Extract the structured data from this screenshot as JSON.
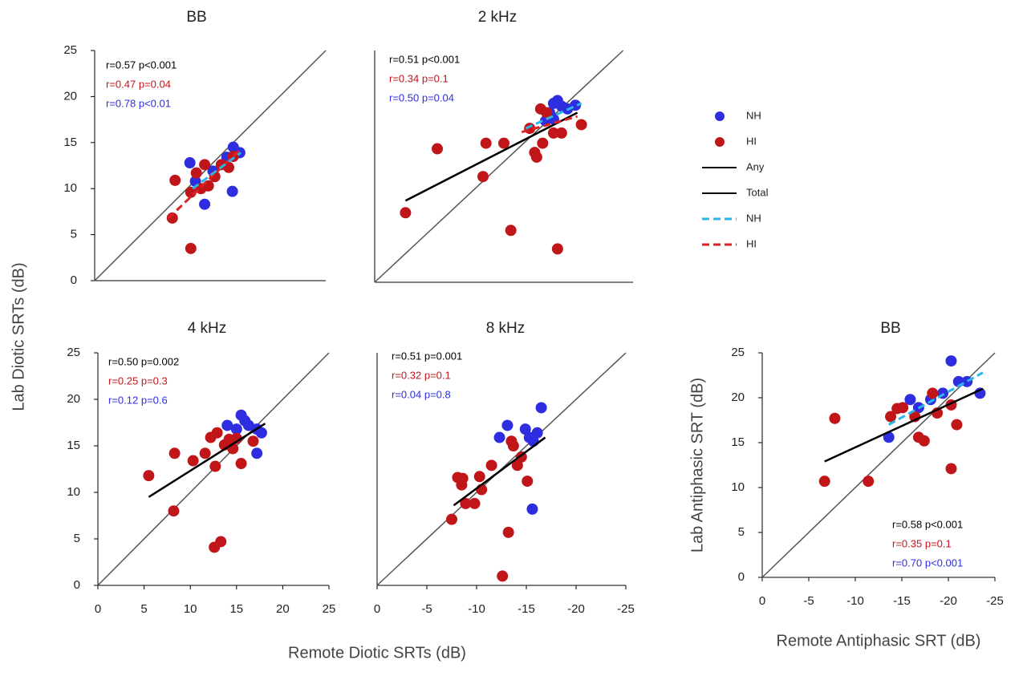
{
  "figure": {
    "ylabel": "Lab Diotic SRTs (dB)",
    "xlabel": "Remote Diotic SRTs (dB)",
    "legend": [
      {
        "name": "NH",
        "color": "#2e2ee0",
        "kind": "marker"
      },
      {
        "name": "HI",
        "color": "#c0161a",
        "kind": "marker"
      },
      {
        "name": "Any",
        "color": "#000000",
        "kind": "line"
      },
      {
        "name": "Total",
        "color": "#000000",
        "kind": "line"
      },
      {
        "name": "NH",
        "color": "#29b6e8",
        "kind": "dashed"
      },
      {
        "name": "HI",
        "color": "#e02020",
        "kind": "dashed"
      }
    ]
  },
  "chart_data": [
    {
      "type": "scatter",
      "title": "BB",
      "xlim": [
        0,
        25
      ],
      "ylim": [
        0,
        25
      ],
      "yticks": [
        0,
        5,
        10,
        15,
        20,
        25
      ],
      "identity": true,
      "annotations": [
        {
          "text": "r=0.57 p<0.001",
          "color": "#000000"
        },
        {
          "text": "r=0.47 p=0.04",
          "color": "#c0161a"
        },
        {
          "text": "r=0.78 p<0.01",
          "color": "#2e2ee0"
        }
      ],
      "series": [
        {
          "color": "#2e2ee0",
          "x": [
            15.0,
            15.7,
            14.3,
            12.8,
            10.3,
            11.9,
            14.9,
            10.9
          ],
          "values": [
            14.5,
            13.9,
            13.4,
            11.9,
            12.8,
            8.3,
            9.7,
            10.8
          ]
        },
        {
          "color": "#c0161a",
          "x": [
            8.7,
            8.4,
            10.4,
            10.4,
            11.5,
            11.9,
            13.0,
            13.7,
            15.0,
            14.5,
            12.3,
            11.0
          ],
          "values": [
            10.9,
            6.8,
            3.5,
            9.6,
            10.0,
            12.6,
            11.3,
            12.6,
            13.5,
            12.3,
            10.3,
            11.7
          ]
        }
      ],
      "fits": [
        {
          "color": "#e02020",
          "dashed": true,
          "x": [
            8.0,
            15.8
          ],
          "values": [
            6.8,
            14.3
          ]
        },
        {
          "color": "#29b6e8",
          "dashed": true,
          "x": [
            10.6,
            15.8
          ],
          "values": [
            10.0,
            13.9
          ]
        }
      ]
    },
    {
      "type": "scatter",
      "title": "2 kHz",
      "xlim": [
        0,
        -26
      ],
      "ylim": [
        0,
        25
      ],
      "identity": true,
      "annotations": [
        {
          "text": "r=0.51 p<0.001",
          "color": "#000000"
        },
        {
          "text": "r=0.34 p=0.1",
          "color": "#c0161a"
        },
        {
          "text": "r=0.50 p=0.04",
          "color": "#2e2ee0"
        }
      ],
      "series": [
        {
          "color": "#2e2ee0",
          "x": [
            -18.0,
            -18.4,
            -18.8,
            -17.6,
            -20.2,
            -18.0,
            -19.4,
            -17.2
          ],
          "values": [
            19.3,
            19.6,
            19.0,
            18.3,
            19.1,
            17.6,
            18.7,
            17.4
          ]
        },
        {
          "color": "#c0161a",
          "x": [
            -3.1,
            -6.3,
            -10.9,
            -11.2,
            -13.0,
            -13.7,
            -15.6,
            -16.1,
            -16.3,
            -16.7,
            -17.3,
            -18.0,
            -18.4,
            -18.8,
            -20.8,
            -16.9
          ],
          "values": [
            7.5,
            14.4,
            11.4,
            15.0,
            15.0,
            5.6,
            16.6,
            14.0,
            13.5,
            18.7,
            18.3,
            16.1,
            3.6,
            16.1,
            17.0,
            15.0
          ]
        }
      ],
      "fits": [
        {
          "color": "#000000",
          "dashed": false,
          "x": [
            -3.1,
            -20.4
          ],
          "values": [
            8.8,
            18.3
          ]
        },
        {
          "color": "#e02020",
          "dashed": true,
          "x": [
            -14.8,
            -20.4
          ],
          "values": [
            16.2,
            17.9
          ]
        },
        {
          "color": "#29b6e8",
          "dashed": true,
          "x": [
            -15.2,
            -20.8
          ],
          "values": [
            16.6,
            19.3
          ]
        }
      ]
    },
    {
      "type": "scatter",
      "title": "4 kHz",
      "xlim": [
        0,
        25
      ],
      "ylim": [
        0,
        25
      ],
      "xticks": [
        0,
        5,
        10,
        15,
        20,
        25
      ],
      "yticks": [
        0,
        5,
        10,
        15,
        20,
        25
      ],
      "identity": true,
      "annotations": [
        {
          "text": "r=0.50 p=0.002",
          "color": "#000000"
        },
        {
          "text": "r=0.25 p=0.3",
          "color": "#c0161a"
        },
        {
          "text": "r=0.12 p=0.6",
          "color": "#2e2ee0"
        }
      ],
      "series": [
        {
          "color": "#2e2ee0",
          "x": [
            15.5,
            15.9,
            16.3,
            17.2,
            17.2,
            17.7,
            14.0,
            15.0
          ],
          "values": [
            18.3,
            17.7,
            17.2,
            16.8,
            14.2,
            16.4,
            17.2,
            16.8
          ]
        },
        {
          "color": "#c0161a",
          "x": [
            5.5,
            8.3,
            8.2,
            10.3,
            11.6,
            12.2,
            12.7,
            12.6,
            13.3,
            13.7,
            14.2,
            15.0,
            15.5,
            14.6,
            16.8,
            12.9
          ],
          "values": [
            11.8,
            14.2,
            8.0,
            13.4,
            14.2,
            15.9,
            12.8,
            4.1,
            4.7,
            15.1,
            15.7,
            15.8,
            13.1,
            14.7,
            15.5,
            16.4
          ]
        }
      ],
      "fits": [
        {
          "color": "#000000",
          "dashed": false,
          "x": [
            5.5,
            18.1
          ],
          "values": [
            9.5,
            17.4
          ]
        }
      ]
    },
    {
      "type": "scatter",
      "title": "8 kHz",
      "xlim": [
        0,
        -25
      ],
      "ylim": [
        0,
        25
      ],
      "xticks": [
        0,
        -5,
        -10,
        -15,
        -20,
        -25
      ],
      "identity": true,
      "annotations": [
        {
          "text": "r=0.51 p=0.001",
          "color": "#000000"
        },
        {
          "text": "r=0.32 p=0.1",
          "color": "#c0161a"
        },
        {
          "text": "r=0.04 p=0.8",
          "color": "#2e2ee0"
        }
      ],
      "series": [
        {
          "color": "#2e2ee0",
          "x": [
            -12.3,
            -13.1,
            -14.9,
            -15.3,
            -15.7,
            -16.5,
            -15.6,
            -16.1
          ],
          "values": [
            15.9,
            17.2,
            16.8,
            15.9,
            15.5,
            19.1,
            8.2,
            16.4
          ]
        },
        {
          "color": "#c0161a",
          "x": [
            -7.5,
            -8.1,
            -8.6,
            -8.9,
            -9.8,
            -10.3,
            -11.5,
            -12.6,
            -13.2,
            -13.5,
            -13.7,
            -14.1,
            -14.5,
            -15.1,
            -10.5,
            -8.5
          ],
          "values": [
            7.1,
            11.6,
            11.5,
            8.8,
            8.8,
            11.7,
            12.9,
            1.0,
            5.7,
            15.5,
            15.0,
            12.9,
            13.8,
            11.2,
            10.3,
            10.8
          ]
        }
      ],
      "fits": [
        {
          "color": "#000000",
          "dashed": false,
          "x": [
            -7.7,
            -16.9
          ],
          "values": [
            8.6,
            15.9
          ]
        }
      ]
    },
    {
      "type": "scatter",
      "title": "BB",
      "xlabel": "Remote Antiphasic SRT (dB)",
      "ylabel": "Lab Antiphasic SRT (dB)",
      "xlim": [
        0,
        -25
      ],
      "ylim": [
        0,
        25
      ],
      "xticks": [
        0,
        -5,
        -10,
        -15,
        -20,
        -25
      ],
      "yticks": [
        0,
        5,
        10,
        15,
        20,
        25
      ],
      "identity": true,
      "annotations": [
        {
          "text": "r=0.58 p<0.001",
          "color": "#000000"
        },
        {
          "text": "r=0.35 p=0.1",
          "color": "#c0161a"
        },
        {
          "text": "r=0.70 p<0.001",
          "color": "#2e2ee0"
        }
      ],
      "series": [
        {
          "color": "#2e2ee0",
          "x": [
            -13.6,
            -15.9,
            -16.8,
            -18.1,
            -19.4,
            -20.3,
            -21.1,
            -22.0,
            -23.4
          ],
          "values": [
            15.6,
            19.8,
            18.9,
            19.8,
            20.5,
            24.1,
            21.8,
            21.8,
            20.5
          ]
        },
        {
          "color": "#c0161a",
          "x": [
            -6.7,
            -7.8,
            -11.4,
            -13.8,
            -14.5,
            -15.1,
            -16.4,
            -16.8,
            -17.4,
            -18.3,
            -18.8,
            -20.3,
            -20.9,
            -20.3
          ],
          "values": [
            10.7,
            17.7,
            10.7,
            17.9,
            18.8,
            18.9,
            17.9,
            15.6,
            15.2,
            20.5,
            18.3,
            12.1,
            17.0,
            19.2
          ]
        }
      ],
      "fits": [
        {
          "color": "#000000",
          "dashed": false,
          "x": [
            -6.7,
            -23.7
          ],
          "values": [
            12.9,
            21.0
          ]
        },
        {
          "color": "#29b6e8",
          "dashed": true,
          "x": [
            -13.6,
            -23.7
          ],
          "values": [
            17.0,
            22.8
          ]
        }
      ]
    }
  ]
}
